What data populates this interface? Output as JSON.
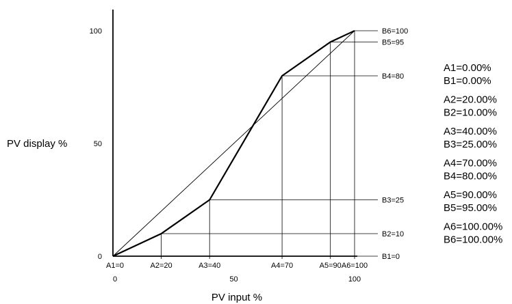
{
  "chart_data": {
    "type": "line",
    "xlabel": "PV input %",
    "ylabel": "PV display %",
    "xlim": [
      0,
      100
    ],
    "ylim": [
      0,
      100
    ],
    "x_ticks": [
      {
        "value": 0,
        "label": "0"
      },
      {
        "value": 50,
        "label": "50"
      },
      {
        "value": 100,
        "label": "100"
      }
    ],
    "y_ticks": [
      {
        "value": 0,
        "label": "0"
      },
      {
        "value": 50,
        "label": "50"
      },
      {
        "value": 100,
        "label": "100"
      }
    ],
    "series": [
      {
        "x": [
          0,
          20,
          40,
          70,
          90,
          100
        ],
        "y": [
          0,
          10,
          25,
          80,
          95,
          100
        ]
      },
      {
        "x": [
          0,
          100
        ],
        "y": [
          0,
          100
        ]
      }
    ],
    "x_markers": [
      {
        "value": 0,
        "label": "A1=0"
      },
      {
        "value": 20,
        "label": "A2=20"
      },
      {
        "value": 40,
        "label": "A3=40"
      },
      {
        "value": 70,
        "label": "A4=70"
      },
      {
        "value": 90,
        "label": "A5=90"
      },
      {
        "value": 100,
        "label": "A6=100"
      }
    ],
    "y_markers": [
      {
        "value": 0,
        "label": "B1=0"
      },
      {
        "value": 10,
        "label": "B2=10"
      },
      {
        "value": 25,
        "label": "B3=25"
      },
      {
        "value": 80,
        "label": "B4=80"
      },
      {
        "value": 95,
        "label": "B5=95"
      },
      {
        "value": 100,
        "label": "B6=100"
      }
    ],
    "pair_labels": [
      [
        "A1=0.00%",
        "B1=0.00%"
      ],
      [
        "A2=20.00%",
        "B2=10.00%"
      ],
      [
        "A3=40.00%",
        "B3=25.00%"
      ],
      [
        "A4=70.00%",
        "B4=80.00%"
      ],
      [
        "A5=90.00%",
        "B5=95.00%"
      ],
      [
        "A6=100.00%",
        "B6=100.00%"
      ]
    ],
    "grid": false,
    "legend": "none"
  }
}
